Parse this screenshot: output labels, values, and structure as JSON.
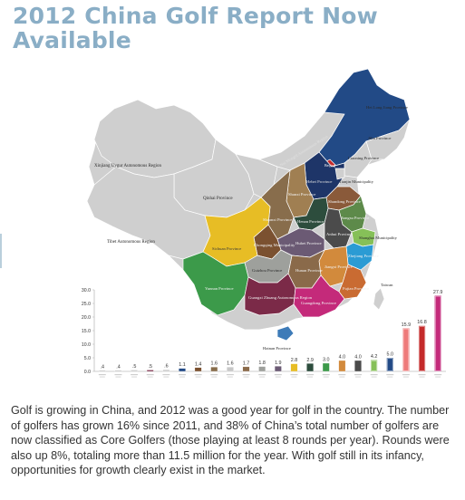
{
  "page": {
    "title": "2012 China Golf Report Now Available",
    "body": "Golf is growing in China, and 2012 was a good year for golf in the country. The number of golfers has grown 16% since 2011, and 38% of China’s total number of golfers are now classified as Core Golfers (those playing at least 8 rounds per year).  Rounds were also up 8%, totaling more than 11.5 million for the year. With golf still in its infancy, opportunities for growth clearly exist in the market."
  },
  "map": {
    "colors": {
      "base": "#cfcfcf",
      "border": "#ffffff",
      "heilongjiang": "#224a86",
      "hebei": "#1e3568",
      "shanxi": "#a07f52",
      "henan": "#2d4d3d",
      "shandong": "#8a5a3a",
      "anhui": "#4b4b4b",
      "jiangsu": "#5d8a4a",
      "shanghai": "#86c058",
      "zhejiang": "#2b9bd4",
      "fujian": "#c96b32",
      "jiangxi": "#d28a3c",
      "hunan": "#8a6a4a",
      "hubei": "#6b5a74",
      "shaanxi": "#886d4c",
      "chongqing": "#7b5130",
      "sichuan": "#e7bd25",
      "guizhou": "#9ea09c",
      "yunnan": "#3c9a4a",
      "guangxi": "#7b2a48",
      "guangdong": "#c42a7a",
      "hainan": "#3d7bb8",
      "beijing": "#c42a2a",
      "taiwan": "#cfcfcf"
    },
    "labels": {
      "heilongjiang": "Hei Long Jiang Province",
      "jilin": "Jilin Province",
      "liaoning": "Liaoning Province",
      "xinjiang": "Xinjiang Uygur Autonomous Region",
      "inner_mongolia": "Nei Mongol Autonomous Region",
      "beijing": "Beijing",
      "tianjin": "Tianjin Municipality",
      "hebei": "Hebei Province",
      "shanxi": "Shanxi Province",
      "shandong": "Shandong Province",
      "qinghai": "Qinhai Province",
      "tibet": "Tibet Autonomous Region",
      "shaanxi": "Shaanxi Province",
      "henan": "Henan Province",
      "jiangsu": "Jiangsu Province",
      "anhui": "Anhui Province",
      "shanghai": "Shanghai Municipality",
      "sichuan": "Sichuan Province",
      "chongqing": "Chongqing Municipality",
      "hubei": "Hubei Province",
      "zhejiang": "Zhejiang Province",
      "hunan": "Hunan Province",
      "jiangxi": "Jiangxi Province",
      "guizhou": "Guizhou Province",
      "fujian": "Fujian Province",
      "yunnan": "Yunnan Province",
      "guangxi": "Guangxi Zhuang Autonomous Region",
      "guangdong": "Guangdong Province",
      "taiwan": "Taiwan",
      "hainan": "Hainan Province"
    }
  },
  "chart_data": {
    "type": "bar",
    "ylim": [
      0,
      30
    ],
    "yticks": [
      "30.0",
      "25.0",
      "20.0",
      "15.0",
      "10.0",
      "5.0",
      "0.0"
    ],
    "values": [
      0.4,
      0.4,
      0.5,
      0.5,
      0.6,
      1.1,
      1.4,
      1.6,
      1.6,
      1.7,
      1.8,
      1.9,
      2.8,
      2.9,
      3.0,
      4.0,
      4.0,
      4.2,
      5.0,
      15.9,
      16.8,
      27.9
    ],
    "value_labels": [
      ".4",
      ".4",
      ".5",
      ".5",
      ".6",
      "1.1",
      "1.4",
      "1.6",
      "1.6",
      "1.7",
      "1.8",
      "1.9",
      "2.8",
      "2.9",
      "3.0",
      "4.0",
      "4.0",
      "4.2",
      "5.0",
      "15.9",
      "16.8",
      "27.9"
    ],
    "colors": [
      "#c8c8c8",
      "#c8c8c8",
      "#c8c8c8",
      "#7b2a48",
      "#c8c8c8",
      "#224a86",
      "#7b5130",
      "#886d4c",
      "#c8c8c8",
      "#8a6a4a",
      "#9ea09c",
      "#6b5a74",
      "#e7bd25",
      "#2d4d3d",
      "#3c9a4a",
      "#d28a3c",
      "#4b4b4b",
      "#86c058",
      "#224a86",
      "#ee7a7a",
      "#c42a2a",
      "#c42a7a"
    ],
    "grid": false
  }
}
